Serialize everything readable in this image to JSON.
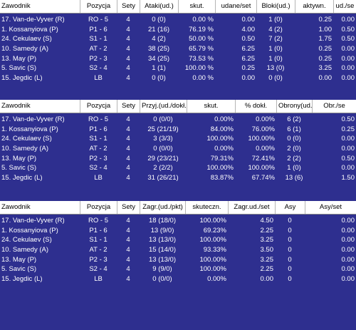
{
  "tables": [
    {
      "headers": [
        "Zawodnik",
        "Pozycja",
        "Sety",
        "Ataki(ud.)",
        "skut.",
        "udane/set",
        "Bloki(ud.)",
        "aktywn.",
        "ud./se"
      ],
      "rows": [
        [
          "17. Van-de-Vyver (R)",
          "RO - 5",
          "4",
          "0 (0)",
          "0.00 %",
          "0.00",
          "1 (0)",
          "0.25",
          "0.00"
        ],
        [
          "1. Kossanyiova (P)",
          "P1 - 6",
          "4",
          "21 (16)",
          "76.19 %",
          "4.00",
          "4 (2)",
          "1.00",
          "0.50"
        ],
        [
          "24. Cekulaev (S)",
          "S1 - 1",
          "4",
          "4 (2)",
          "50.00 %",
          "0.50",
          "7 (2)",
          "1.75",
          "0.50"
        ],
        [
          "10. Samedy (A)",
          "AT - 2",
          "4",
          "38 (25)",
          "65.79 %",
          "6.25",
          "1 (0)",
          "0.25",
          "0.00"
        ],
        [
          "13. May (P)",
          "P2 - 3",
          "4",
          "34 (25)",
          "73.53 %",
          "6.25",
          "1 (0)",
          "0.25",
          "0.00"
        ],
        [
          "5. Savic (S)",
          "S2 - 4",
          "4",
          "1 (1)",
          "100.00 %",
          "0.25",
          "13 (0)",
          "3.25",
          "0.00"
        ],
        [
          "15. Jegdic (L)",
          "LB",
          "4",
          "0 (0)",
          "0.00 %",
          "0.00",
          "0 (0)",
          "0.00",
          "0.00"
        ]
      ]
    },
    {
      "headers": [
        "Zawodnik",
        "Pozycja",
        "Sety",
        "Przyj.(ud./dokł.)",
        "skut.",
        "% dokł.",
        "Obrony(ud.)",
        "Obr./se"
      ],
      "rows": [
        [
          "17. Van-de-Vyver (R)",
          "RO - 5",
          "4",
          "0 (0/0)",
          "0.00%",
          "0.00%",
          "6 (2)",
          "0.50"
        ],
        [
          "1. Kossanyiova (P)",
          "P1 - 6",
          "4",
          "25 (21/19)",
          "84.00%",
          "76.00%",
          "6 (1)",
          "0.25"
        ],
        [
          "24. Cekulaev (S)",
          "S1 - 1",
          "4",
          "3 (3/3)",
          "100.00%",
          "100.00%",
          "0 (0)",
          "0.00"
        ],
        [
          "10. Samedy (A)",
          "AT - 2",
          "4",
          "0 (0/0)",
          "0.00%",
          "0.00%",
          "2 (0)",
          "0.00"
        ],
        [
          "13. May (P)",
          "P2 - 3",
          "4",
          "29 (23/21)",
          "79.31%",
          "72.41%",
          "2 (2)",
          "0.50"
        ],
        [
          "5. Savic (S)",
          "S2 - 4",
          "4",
          "2 (2/2)",
          "100.00%",
          "100.00%",
          "1 (0)",
          "0.00"
        ],
        [
          "15. Jegdic (L)",
          "LB",
          "4",
          "31 (26/21)",
          "83.87%",
          "67.74%",
          "13 (6)",
          "1.50"
        ]
      ]
    },
    {
      "headers": [
        "Zawodnik",
        "Pozycja",
        "Sety",
        "Zagr.(ud./pkt)",
        "skuteczn.",
        "Zagr.ud./set",
        "Asy",
        "Asy/set"
      ],
      "rows": [
        [
          "17. Van-de-Vyver (R)",
          "RO - 5",
          "4",
          "18 (18/0)",
          "100.00%",
          "4.50",
          "0",
          "0.00"
        ],
        [
          "1. Kossanyiova (P)",
          "P1 - 6",
          "4",
          "13 (9/0)",
          "69.23%",
          "2.25",
          "0",
          "0.00"
        ],
        [
          "24. Cekulaev (S)",
          "S1 - 1",
          "4",
          "13 (13/0)",
          "100.00%",
          "3.25",
          "0",
          "0.00"
        ],
        [
          "10. Samedy (A)",
          "AT - 2",
          "4",
          "15 (14/0)",
          "93.33%",
          "3.50",
          "0",
          "0.00"
        ],
        [
          "13. May (P)",
          "P2 - 3",
          "4",
          "13 (13/0)",
          "100.00%",
          "3.25",
          "0",
          "0.00"
        ],
        [
          "5. Savic (S)",
          "S2 - 4",
          "4",
          "9 (9/0)",
          "100.00%",
          "2.25",
          "0",
          "0.00"
        ],
        [
          "15. Jegdic (L)",
          "LB",
          "4",
          "0 (0/0)",
          "0.00%",
          "0.00",
          "0",
          "0.00"
        ]
      ]
    }
  ]
}
